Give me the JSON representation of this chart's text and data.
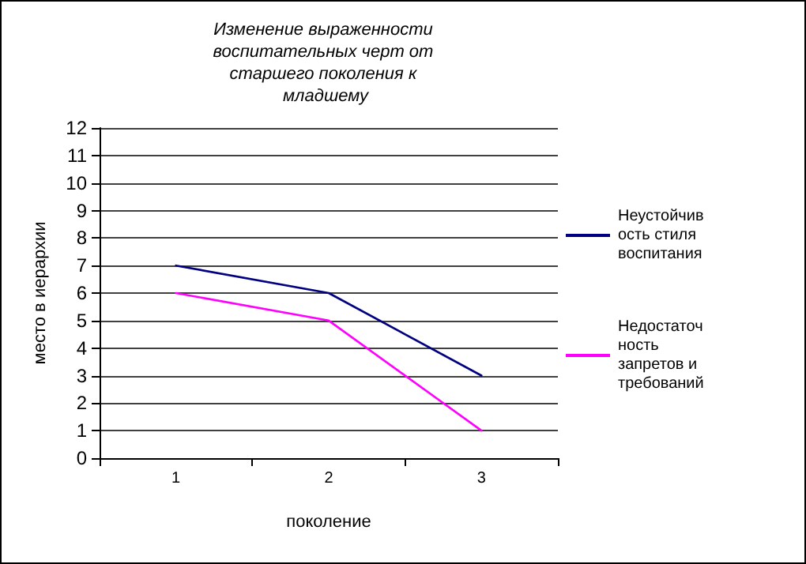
{
  "chart_data": {
    "type": "line",
    "title": "Изменение выраженности воспитательных черт от старшего поколения к младшему",
    "xlabel": "поколение",
    "ylabel": "место в иерархии",
    "categories": [
      "1",
      "2",
      "3"
    ],
    "series": [
      {
        "name": "Неустойчивость стиля воспитания",
        "color": "#000080",
        "values": [
          7,
          6,
          3
        ]
      },
      {
        "name": "Недостаточность запретов и требований",
        "color": "#ff00ff",
        "values": [
          6,
          5,
          1
        ]
      }
    ],
    "ylim": [
      0,
      12
    ],
    "yticks": [
      0,
      1,
      2,
      3,
      4,
      5,
      6,
      7,
      8,
      9,
      10,
      11,
      12
    ],
    "grid": "y",
    "legend": "right",
    "marker": "none",
    "line_style": "solid"
  }
}
